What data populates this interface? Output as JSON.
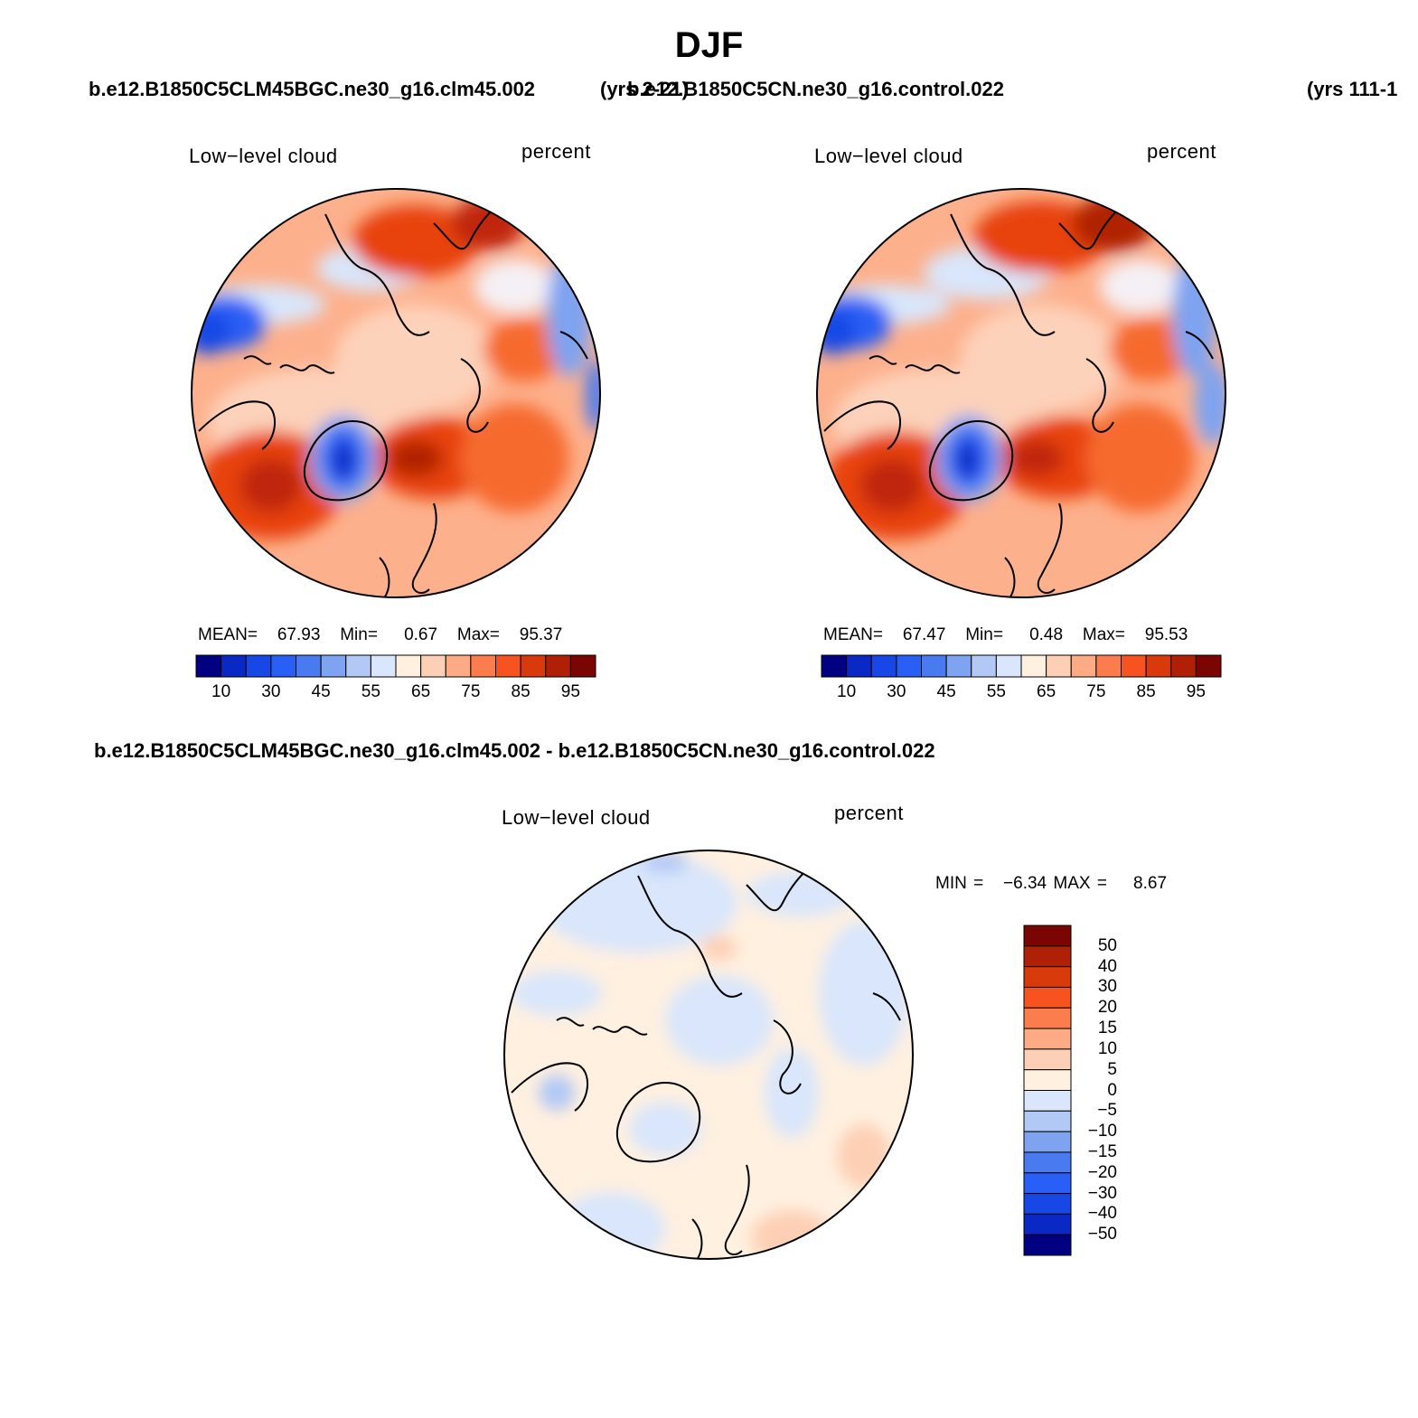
{
  "title": "DJF",
  "panels": [
    {
      "case": "b.e12.B1850C5CLM45BGC.ne30_g16.clm45.002",
      "years": "(yrs 2-21)",
      "variable": "Low−level cloud",
      "units": "percent",
      "stats": {
        "mean_label": "MEAN=",
        "mean": "67.93",
        "min_label": "Min=",
        "min": "0.67",
        "max_label": "Max=",
        "max": "95.37"
      }
    },
    {
      "case": "b.e12.B1850C5CN.ne30_g16.control.022",
      "years": "(yrs 111-1",
      "variable": "Low−level cloud",
      "units": "percent",
      "stats": {
        "mean_label": "MEAN=",
        "mean": "67.47",
        "min_label": "Min=",
        "min": "0.48",
        "max_label": "Max=",
        "max": "95.53"
      }
    }
  ],
  "colorbar": {
    "tick_labels": [
      "10",
      "30",
      "45",
      "55",
      "65",
      "75",
      "85",
      "95"
    ],
    "colors": [
      "#000080",
      "#0a29c4",
      "#1748e6",
      "#2a5ff5",
      "#4a7af0",
      "#7ea3f0",
      "#b3c9f5",
      "#d9e6fb",
      "#fff0e0",
      "#fdd0b5",
      "#fcab85",
      "#fb7d4d",
      "#f65320",
      "#d83a0b",
      "#b02006",
      "#7a0503"
    ]
  },
  "difference": {
    "title": "b.e12.B1850C5CLM45BGC.ne30_g16.clm45.002 - b.e12.B1850C5CN.ne30_g16.control.022",
    "variable": "Low−level cloud",
    "units": "percent",
    "min_max": "MIN =   −6.34 MAX =    8.67",
    "colorbar_labels": [
      "50",
      "40",
      "30",
      "20",
      "15",
      "10",
      "5",
      "0",
      "−5",
      "−10",
      "−15",
      "−20",
      "−30",
      "−40",
      "−50"
    ],
    "colors": [
      "#7a0503",
      "#b02006",
      "#d83a0b",
      "#f65320",
      "#fb7d4d",
      "#fcab85",
      "#fdd0b5",
      "#fff0e0",
      "#d9e6fb",
      "#b3c9f5",
      "#7ea3f0",
      "#4a7af0",
      "#2a5ff5",
      "#1748e6",
      "#0a29c4",
      "#000080"
    ]
  }
}
